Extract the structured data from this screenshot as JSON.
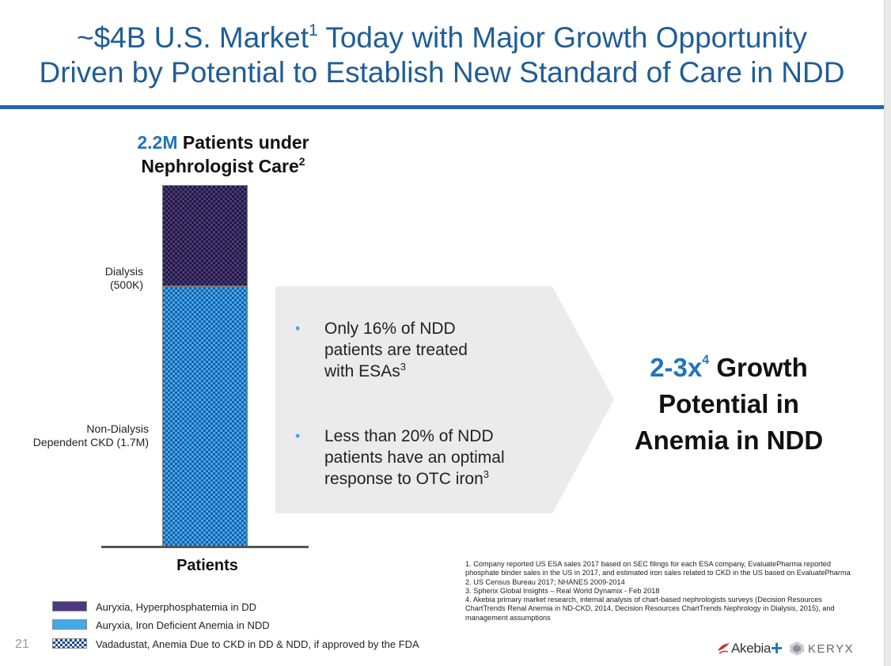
{
  "title": {
    "line1_main": "~$4B U.S. Market",
    "line1_sup": "1",
    "line1_rest": " Today with Major Growth Opportunity",
    "line2": "Driven by Potential to Establish New Standard of Care in NDD"
  },
  "chart_data": {
    "type": "bar",
    "stacked": true,
    "categories": [
      "Patients"
    ],
    "series": [
      {
        "name": "Non-Dialysis Dependent CKD (1.7M)",
        "values": [
          1.7
        ]
      },
      {
        "name": "Dialysis (500K)",
        "values": [
          0.5
        ]
      }
    ],
    "total_label": "2.2M",
    "title": "2.2M Patients under Nephrologist Care",
    "xlabel": "Patients",
    "ylabel": ""
  },
  "chart": {
    "head_accent": "2.2M",
    "head_rest": " Patients under",
    "head_line2": "Nephrologist Care",
    "head_sup": "2",
    "dialysis_label_1": "Dialysis",
    "dialysis_label_2": "(500K)",
    "nondialysis_label_1": "Non-Dialysis",
    "nondialysis_label_2": "Dependent CKD (1.7M)",
    "x_label": "Patients"
  },
  "bullets": [
    {
      "dot": "•",
      "lines": [
        "Only 16% of NDD",
        "patients are treated",
        "with ESAs"
      ],
      "sup": "3"
    },
    {
      "dot": "•",
      "lines": [
        "Less than 20% of NDD",
        "patients have an optimal",
        "response to OTC iron"
      ],
      "sup": "3"
    }
  ],
  "growth": {
    "accent": "2-3x",
    "sup": "4",
    "rest": " Growth",
    "line2": "Potential in",
    "line3": "Anemia in NDD"
  },
  "legend": [
    {
      "label": "Auryxia, Hyperphosphatemia in DD",
      "color": "#4b3a7e"
    },
    {
      "label": "Auryxia, Iron Deficient Anemia in NDD",
      "color": "#41a9ea"
    },
    {
      "label": "Vadadustat, Anemia Due to CKD in DD & NDD, if approved by the FDA",
      "color": "#1a4d8a"
    }
  ],
  "page_number": "21",
  "footnotes": [
    "1. Company reported US ESA sales 2017 based on SEC filings for each ESA company, EvaluatePharma reported phosphate binder sales in the US in 2017, and estimated iron sales related to CKD in the US based on EvaluatePharma",
    "2. US Census Bureau 2017; NHANES 2009-2014",
    "3. Spherix Global Insights – Real World Dynamix - Feb 2018",
    "4. Akebia primary market research, internal analysis of chart-based nephrologists surveys (Decision Resources ChartTrends Renal Anemia in ND-CKD, 2014, Decision Resources ChartTrends Nephrology in Dialysis, 2015), and management assumptions"
  ],
  "logos": {
    "akebia": "Akebia",
    "plus": "+",
    "keryx": "KERYX"
  }
}
